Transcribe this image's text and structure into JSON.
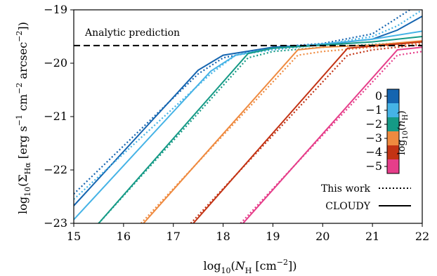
{
  "chart_data": {
    "type": "line",
    "xlabel_parts": [
      "log",
      "10",
      "(",
      "N",
      "H",
      " [cm",
      "−2",
      "])"
    ],
    "ylabel_parts": [
      "log",
      "10",
      "(Σ",
      "Hα",
      " [erg s",
      "−1",
      " cm",
      "−2",
      " arcsec",
      "−2",
      "])"
    ],
    "xlim": [
      15,
      22
    ],
    "ylim": [
      -23,
      -19
    ],
    "xticks": [
      15,
      16,
      17,
      18,
      19,
      20,
      21,
      22
    ],
    "xtick_labels": [
      "15",
      "16",
      "17",
      "18",
      "19",
      "20",
      "21",
      "22"
    ],
    "yticks": [
      -23,
      -22,
      -21,
      -20,
      -19
    ],
    "ytick_labels": [
      "−23",
      "−22",
      "−21",
      "−20",
      "−19"
    ],
    "annotation": "Analytic prediction",
    "analytic_prediction_y": -19.67,
    "legend": [
      {
        "label": "This work",
        "style": "dotted"
      },
      {
        "label": "CLOUDY",
        "style": "solid"
      }
    ],
    "colorbar": {
      "label_parts": [
        "log",
        "10",
        "(",
        "n",
        "H",
        ")"
      ],
      "ticks": [
        0,
        -1,
        -2,
        -3,
        -4,
        -5
      ],
      "tick_labels": [
        "0",
        "−1",
        "−2",
        "−3",
        "−4",
        "−5"
      ],
      "range": [
        -5.5,
        0.5
      ]
    },
    "series": [
      {
        "log_nH": 0,
        "color": "#1565b0",
        "cloudy": [
          [
            15,
            -22.67
          ],
          [
            17.5,
            -20.13
          ],
          [
            18,
            -19.85
          ],
          [
            19,
            -19.7
          ],
          [
            20,
            -19.65
          ],
          [
            21,
            -19.55
          ],
          [
            21.5,
            -19.38
          ],
          [
            22,
            -19.12
          ]
        ],
        "this_work": [
          [
            15,
            -22.45
          ],
          [
            17.5,
            -20.2
          ],
          [
            18,
            -19.9
          ],
          [
            19,
            -19.7
          ],
          [
            20,
            -19.63
          ],
          [
            21,
            -19.45
          ],
          [
            21.5,
            -19.15
          ],
          [
            22,
            -18.85
          ]
        ]
      },
      {
        "log_nH": -1,
        "color": "#45b3e6",
        "cloudy": [
          [
            15,
            -22.93
          ],
          [
            17.75,
            -20.15
          ],
          [
            18.25,
            -19.85
          ],
          [
            19,
            -19.72
          ],
          [
            20,
            -19.64
          ],
          [
            21,
            -19.55
          ],
          [
            22,
            -19.4
          ]
        ],
        "this_work": [
          [
            15,
            -22.55
          ],
          [
            17.75,
            -20.2
          ],
          [
            18.25,
            -19.85
          ],
          [
            19,
            -19.75
          ],
          [
            20,
            -19.65
          ],
          [
            21,
            -19.5
          ],
          [
            21.5,
            -19.3
          ],
          [
            22,
            -19.0
          ]
        ]
      },
      {
        "log_nH": -2,
        "color": "#159a86",
        "cloudy": [
          [
            15.5,
            -23.0
          ],
          [
            18.5,
            -19.82
          ],
          [
            19,
            -19.72
          ],
          [
            20,
            -19.66
          ],
          [
            21,
            -19.6
          ],
          [
            22,
            -19.5
          ]
        ],
        "this_work": [
          [
            15.5,
            -23.0
          ],
          [
            18.5,
            -19.9
          ],
          [
            19,
            -19.78
          ],
          [
            20,
            -19.7
          ],
          [
            21,
            -19.65
          ],
          [
            22,
            -19.6
          ]
        ]
      },
      {
        "log_nH": -3,
        "color": "#ef8a3f",
        "cloudy": [
          [
            16.4,
            -23.0
          ],
          [
            19.5,
            -19.75
          ],
          [
            20,
            -19.7
          ],
          [
            21,
            -19.66
          ],
          [
            22,
            -19.58
          ]
        ],
        "this_work": [
          [
            16.35,
            -23.0
          ],
          [
            19.5,
            -19.85
          ],
          [
            20,
            -19.78
          ],
          [
            21,
            -19.7
          ],
          [
            22,
            -19.62
          ]
        ]
      },
      {
        "log_nH": -4,
        "color": "#c33314",
        "cloudy": [
          [
            17.4,
            -23.0
          ],
          [
            20.5,
            -19.72
          ],
          [
            21,
            -19.68
          ],
          [
            22,
            -19.6
          ]
        ],
        "this_work": [
          [
            17.35,
            -23.0
          ],
          [
            20.5,
            -19.85
          ],
          [
            21,
            -19.75
          ],
          [
            22,
            -19.65
          ]
        ]
      },
      {
        "log_nH": -5,
        "color": "#e63e8a",
        "cloudy": [
          [
            18.4,
            -23.0
          ],
          [
            21.5,
            -19.75
          ],
          [
            22,
            -19.7
          ]
        ],
        "this_work": [
          [
            18.35,
            -23.0
          ],
          [
            21.5,
            -19.85
          ],
          [
            22,
            -19.78
          ]
        ]
      }
    ]
  }
}
